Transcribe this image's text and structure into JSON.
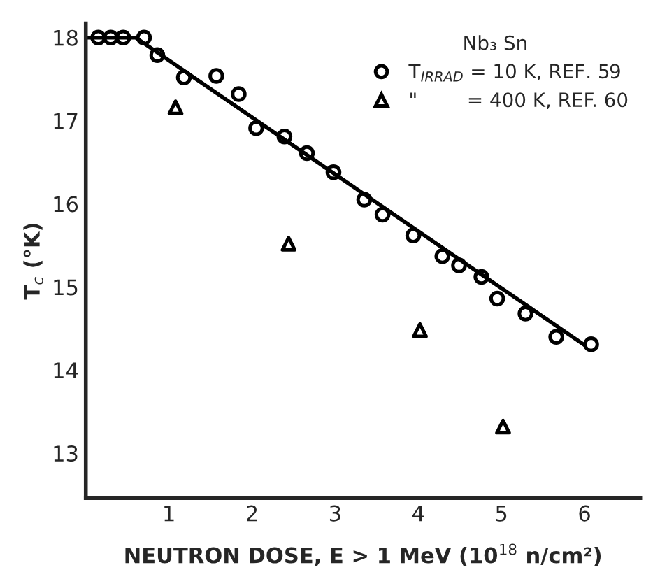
{
  "chart_data": {
    "type": "scatter",
    "xlabel": "NEUTRON DOSE, E > 1 MeV (10$^{18}$ n/cm²)",
    "ylabel": "T$_{c}$ (°K)",
    "legend_title": "Nb₃ Sn",
    "xlim": [
      0,
      6.67
    ],
    "ylim": [
      12.46,
      18.17
    ],
    "xticks": [
      1,
      2,
      3,
      4,
      5,
      6
    ],
    "yticks": [
      13,
      14,
      15,
      16,
      17,
      18
    ],
    "grid": false,
    "legend": "top right",
    "series": [
      {
        "name": "T$_{IRRAD}$ = 10 K, REF. 59",
        "color": "#000000",
        "marker": "circle",
        "x": [
          0.15,
          0.3,
          0.45,
          0.7,
          0.86,
          1.18,
          1.57,
          1.84,
          2.05,
          2.39,
          2.66,
          2.98,
          3.35,
          3.57,
          3.94,
          4.29,
          4.49,
          4.76,
          4.95,
          5.29,
          5.66,
          6.08
        ],
        "values": [
          18.0,
          18.0,
          18.0,
          18.0,
          17.79,
          17.52,
          17.54,
          17.32,
          16.91,
          16.81,
          16.61,
          16.38,
          16.05,
          15.87,
          15.62,
          15.37,
          15.26,
          15.12,
          14.86,
          14.68,
          14.4,
          14.31
        ]
      },
      {
        "name": "\"        = 400 K, REF. 60",
        "color": "#000000",
        "marker": "triangle",
        "x": [
          1.08,
          2.44,
          4.02,
          5.02
        ],
        "values": [
          17.16,
          15.52,
          14.48,
          13.32
        ]
      },
      {
        "type": "line",
        "color": "#000000",
        "marker": "none",
        "line_style": "solid",
        "x": [
          0,
          0.6,
          6.0
        ],
        "values": [
          18.0,
          18.0,
          14.3
        ]
      }
    ]
  }
}
